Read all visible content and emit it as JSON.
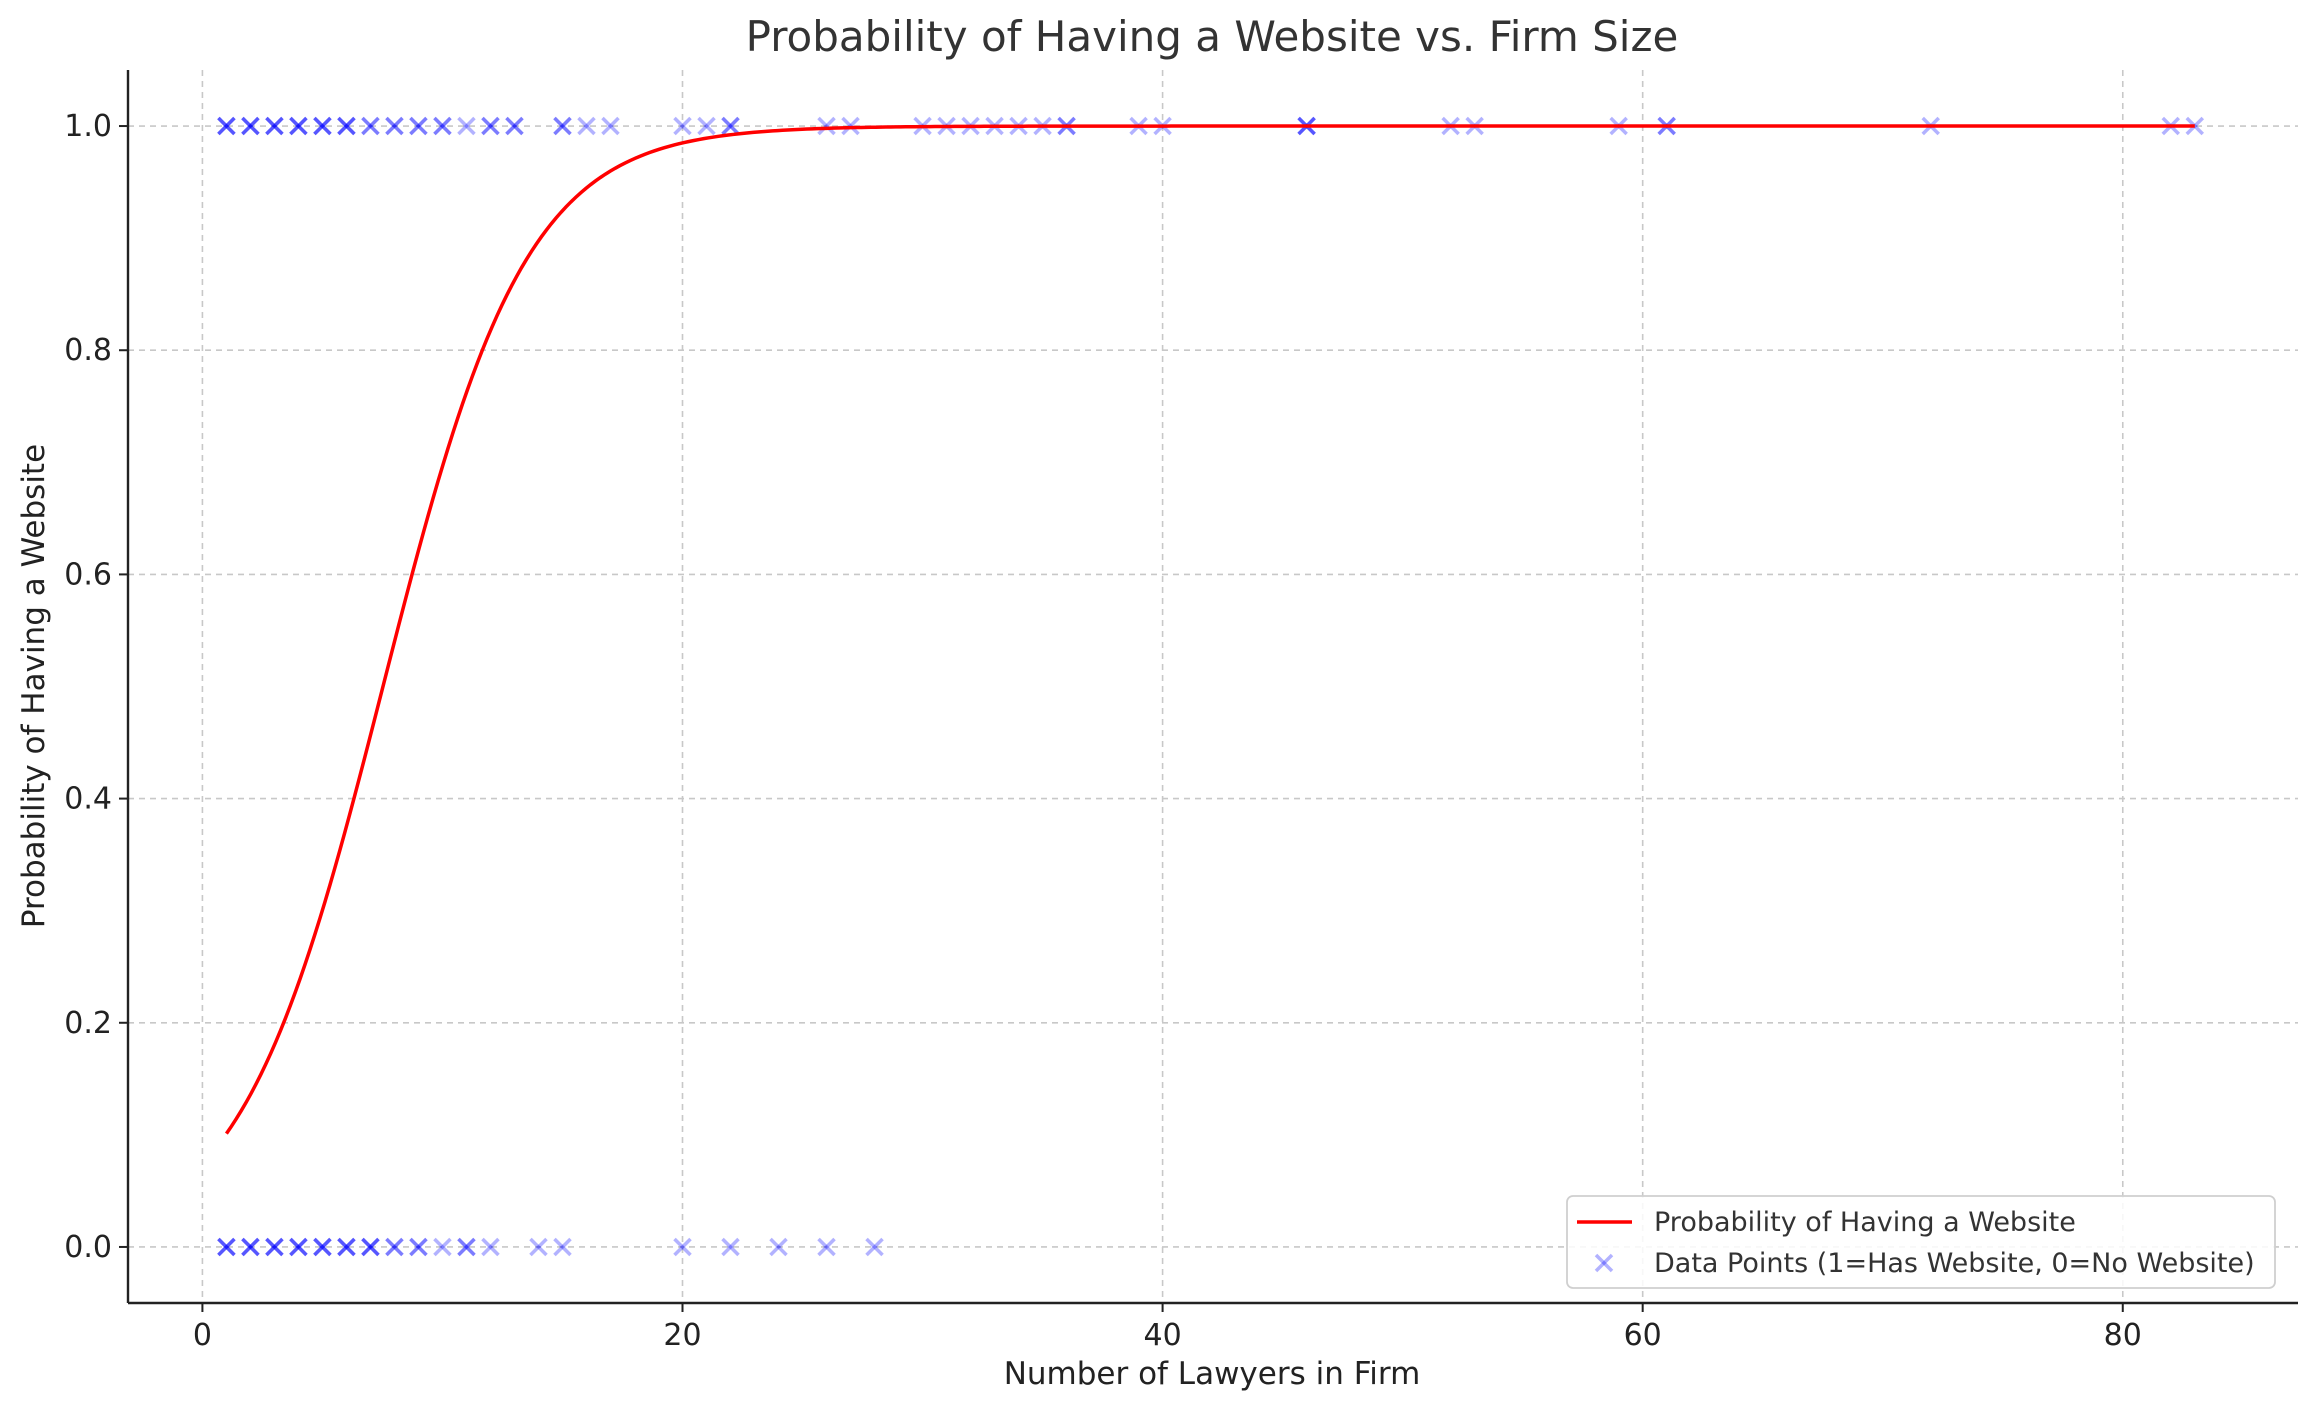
{
  "chart_data": {
    "type": "scatter",
    "title": "Probability of Having a Website vs. Firm Size",
    "xlabel": "Number of Lawyers in Firm",
    "ylabel": "Probability of Having a Website",
    "xlim": [
      -3.1,
      87.3
    ],
    "ylim": [
      -0.05,
      1.05
    ],
    "xticks": [
      "0",
      "20",
      "40",
      "60",
      "80"
    ],
    "yticks": [
      "0.0",
      "0.2",
      "0.4",
      "0.6",
      "0.8",
      "1.0"
    ],
    "grid": true,
    "legend_position": "bottom-right",
    "series": [
      {
        "name": "Probability of Having a Website",
        "kind": "line",
        "color": "#ff0000",
        "model": {
          "form": "logistic",
          "intercept": -2.52,
          "slope": 0.335,
          "x_range": [
            1,
            83
          ]
        }
      },
      {
        "name": "Data Points (1=Has Website, 0=No Website)",
        "kind": "scatter",
        "marker": "x",
        "color": "#0000ff",
        "alpha": 0.3,
        "points": [
          {
            "x": 1,
            "y": 1,
            "count": 3
          },
          {
            "x": 2,
            "y": 1,
            "count": 3
          },
          {
            "x": 3,
            "y": 1,
            "count": 3
          },
          {
            "x": 4,
            "y": 1,
            "count": 3
          },
          {
            "x": 5,
            "y": 1,
            "count": 3
          },
          {
            "x": 6,
            "y": 1,
            "count": 3
          },
          {
            "x": 7,
            "y": 1,
            "count": 2
          },
          {
            "x": 8,
            "y": 1,
            "count": 2
          },
          {
            "x": 9,
            "y": 1,
            "count": 2
          },
          {
            "x": 10,
            "y": 1,
            "count": 2
          },
          {
            "x": 11,
            "y": 1,
            "count": 1
          },
          {
            "x": 12,
            "y": 1,
            "count": 2
          },
          {
            "x": 13,
            "y": 1,
            "count": 2
          },
          {
            "x": 15,
            "y": 1,
            "count": 2
          },
          {
            "x": 16,
            "y": 1,
            "count": 1
          },
          {
            "x": 17,
            "y": 1,
            "count": 1
          },
          {
            "x": 20,
            "y": 1,
            "count": 1
          },
          {
            "x": 21,
            "y": 1,
            "count": 1
          },
          {
            "x": 22,
            "y": 1,
            "count": 2
          },
          {
            "x": 26,
            "y": 1,
            "count": 1
          },
          {
            "x": 27,
            "y": 1,
            "count": 1
          },
          {
            "x": 30,
            "y": 1,
            "count": 1
          },
          {
            "x": 31,
            "y": 1,
            "count": 1
          },
          {
            "x": 32,
            "y": 1,
            "count": 1
          },
          {
            "x": 33,
            "y": 1,
            "count": 1
          },
          {
            "x": 34,
            "y": 1,
            "count": 1
          },
          {
            "x": 35,
            "y": 1,
            "count": 1
          },
          {
            "x": 36,
            "y": 1,
            "count": 2
          },
          {
            "x": 39,
            "y": 1,
            "count": 1
          },
          {
            "x": 40,
            "y": 1,
            "count": 1
          },
          {
            "x": 46,
            "y": 1,
            "count": 3
          },
          {
            "x": 52,
            "y": 1,
            "count": 1
          },
          {
            "x": 53,
            "y": 1,
            "count": 1
          },
          {
            "x": 59,
            "y": 1,
            "count": 1
          },
          {
            "x": 61,
            "y": 1,
            "count": 2
          },
          {
            "x": 72,
            "y": 1,
            "count": 1
          },
          {
            "x": 82,
            "y": 1,
            "count": 1
          },
          {
            "x": 83,
            "y": 1,
            "count": 1
          },
          {
            "x": 1,
            "y": 0,
            "count": 3
          },
          {
            "x": 2,
            "y": 0,
            "count": 3
          },
          {
            "x": 3,
            "y": 0,
            "count": 3
          },
          {
            "x": 4,
            "y": 0,
            "count": 3
          },
          {
            "x": 5,
            "y": 0,
            "count": 3
          },
          {
            "x": 6,
            "y": 0,
            "count": 3
          },
          {
            "x": 7,
            "y": 0,
            "count": 3
          },
          {
            "x": 8,
            "y": 0,
            "count": 2
          },
          {
            "x": 9,
            "y": 0,
            "count": 2
          },
          {
            "x": 10,
            "y": 0,
            "count": 1
          },
          {
            "x": 11,
            "y": 0,
            "count": 2
          },
          {
            "x": 12,
            "y": 0,
            "count": 1
          },
          {
            "x": 14,
            "y": 0,
            "count": 1
          },
          {
            "x": 15,
            "y": 0,
            "count": 1
          },
          {
            "x": 20,
            "y": 0,
            "count": 1
          },
          {
            "x": 22,
            "y": 0,
            "count": 1
          },
          {
            "x": 24,
            "y": 0,
            "count": 1
          },
          {
            "x": 26,
            "y": 0,
            "count": 1
          },
          {
            "x": 28,
            "y": 0,
            "count": 1
          }
        ]
      }
    ]
  }
}
